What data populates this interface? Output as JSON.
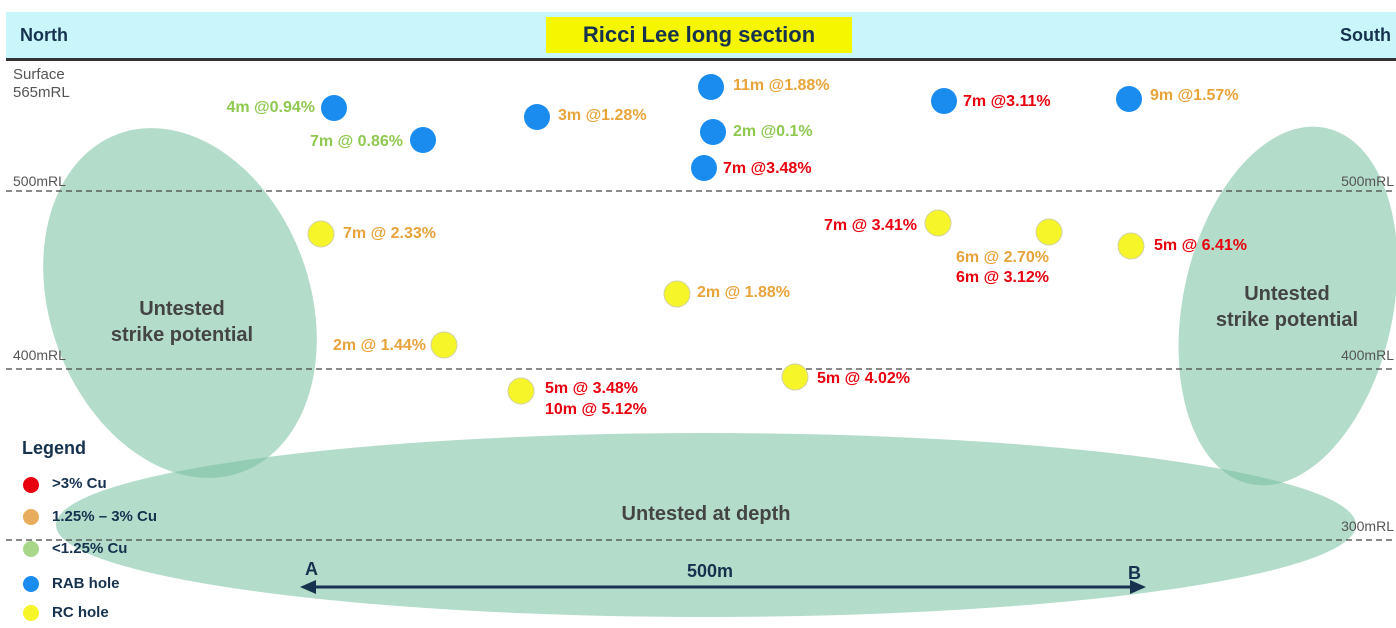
{
  "header": {
    "title": "Ricci Lee long section",
    "left_label": "North",
    "right_label": "South"
  },
  "surface_label": [
    "Surface",
    "565mRL"
  ],
  "rl_lines": [
    {
      "label": "500mRL",
      "level": 500
    },
    {
      "label": "400mRL",
      "level": 400
    },
    {
      "label": "300mRL",
      "level": 300
    }
  ],
  "zones": {
    "north": [
      "Untested",
      "strike potential"
    ],
    "south": [
      "Untested",
      "strike potential"
    ],
    "depth": "Untested at depth"
  },
  "legend": {
    "title": "Legend",
    "items": [
      {
        "label": ">3% Cu",
        "color": "#e8000e"
      },
      {
        "label": "1.25% – 3% Cu",
        "color": "#e8ad5c"
      },
      {
        "label": "<1.25% Cu",
        "color": "#a9d78a"
      },
      {
        "label": "RAB hole",
        "color": "#1a8cf0"
      },
      {
        "label": "RC hole",
        "color": "#f5f52a"
      }
    ]
  },
  "scale": {
    "start": "A",
    "end": "B",
    "label": "500m"
  },
  "colors": {
    "high_grade": "#e8000e",
    "mid_grade": "#e8a33a",
    "low_grade": "#8fc84f",
    "rab_hole": "#1a8cf0",
    "rc_hole": "#f5f52a",
    "untested_zone": "#77bfa0"
  },
  "intercepts": {
    "rab": [
      {
        "text": "4m @0.94%",
        "grade": "low_grade"
      },
      {
        "text": "7m @ 0.86%",
        "grade": "low_grade"
      },
      {
        "text": "3m @1.28%",
        "grade": "mid_grade"
      },
      {
        "text": "11m @1.88%",
        "grade": "mid_grade"
      },
      {
        "text": "2m @0.1%",
        "grade": "low_grade"
      },
      {
        "text": "7m @3.48%",
        "grade": "high_grade"
      },
      {
        "text": "7m @3.11%",
        "grade": "high_grade"
      },
      {
        "text": "9m @1.57%",
        "grade": "mid_grade"
      }
    ],
    "rc": [
      {
        "text": "7m @ 2.33%",
        "grade": "mid_grade"
      },
      {
        "text": "2m @ 1.44%",
        "grade": "mid_grade"
      },
      {
        "text": "5m @ 3.48%",
        "grade": "high_grade"
      },
      {
        "text": "10m @ 5.12%",
        "grade": "high_grade"
      },
      {
        "text": "2m @ 1.88%",
        "grade": "mid_grade"
      },
      {
        "text": "5m @ 4.02%",
        "grade": "high_grade"
      },
      {
        "text": "7m @ 3.41%",
        "grade": "high_grade"
      },
      {
        "text": "6m @ 2.70%",
        "grade": "mid_grade"
      },
      {
        "text": "6m @ 3.12%",
        "grade": "high_grade"
      },
      {
        "text": "5m @ 6.41%",
        "grade": "high_grade"
      }
    ]
  }
}
